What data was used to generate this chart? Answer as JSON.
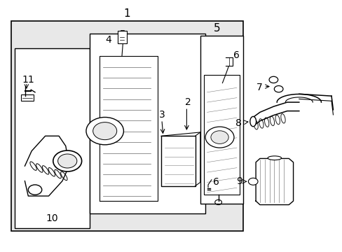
{
  "bg_color": "#f0f0f0",
  "line_color": "#000000",
  "white": "#ffffff",
  "light_gray": "#e8e8e8",
  "font_size_label": 10
}
